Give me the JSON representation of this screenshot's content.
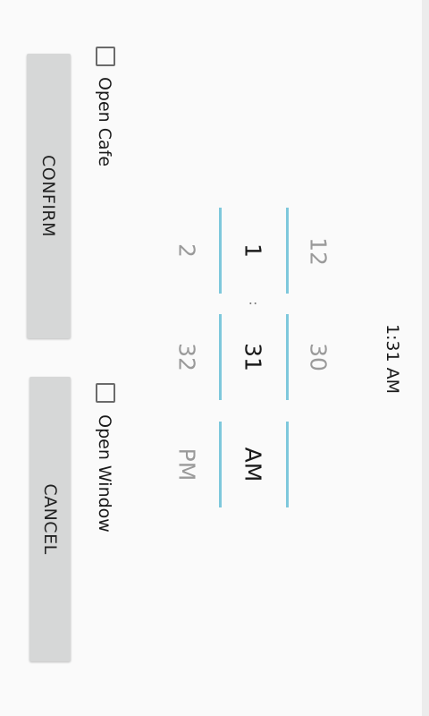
{
  "dialog": {
    "time_header": "1:31 AM"
  },
  "buttons": {
    "confirm_label": "CONFIRM",
    "cancel_label": "CANCEL"
  },
  "checkboxes": {
    "open_cafe": {
      "label": "Open Cafe",
      "checked": false
    },
    "open_window": {
      "label": "Open Window",
      "checked": false
    }
  },
  "time_picker": {
    "hour": {
      "prev": "12",
      "selected": "1",
      "next": "2"
    },
    "separator": ":",
    "minute": {
      "prev": "30",
      "selected": "31",
      "next": "32"
    },
    "period": {
      "selected": "AM",
      "next": "PM"
    }
  },
  "colors": {
    "background": "#fafafa",
    "button": "#d6d7d7",
    "picker_accent": "#7ec8dc",
    "text": "#1a1a1a",
    "dim_text": "#9a9a9a"
  }
}
